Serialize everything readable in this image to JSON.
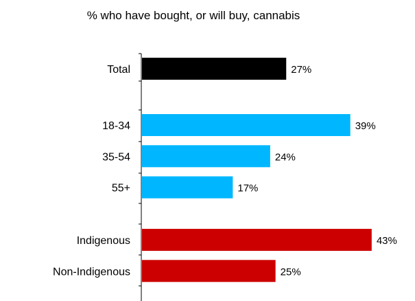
{
  "chart_data": {
    "type": "bar",
    "orientation": "horizontal",
    "title": "% who have bought, or will buy, cannabis",
    "xlabel": "",
    "ylabel": "",
    "xlim": [
      0,
      48.8
    ],
    "grid": false,
    "legend": "none",
    "groups": [
      {
        "bars": [
          {
            "label": "Total",
            "value": 27,
            "value_label": "27%",
            "color": "#000000"
          }
        ]
      },
      {
        "bars": [
          {
            "label": "18-34",
            "value": 39,
            "value_label": "39%",
            "color": "#00b7ff"
          },
          {
            "label": "35-54",
            "value": 24,
            "value_label": "24%",
            "color": "#00b7ff"
          },
          {
            "label": "55+",
            "value": 17,
            "value_label": "17%",
            "color": "#00b7ff"
          }
        ]
      },
      {
        "bars": [
          {
            "label": "Indigenous",
            "value": 43,
            "value_label": "43%",
            "color": "#cc0000"
          },
          {
            "label": "Non-Indigenous",
            "value": 25,
            "value_label": "25%",
            "color": "#cc0000"
          }
        ]
      }
    ]
  }
}
